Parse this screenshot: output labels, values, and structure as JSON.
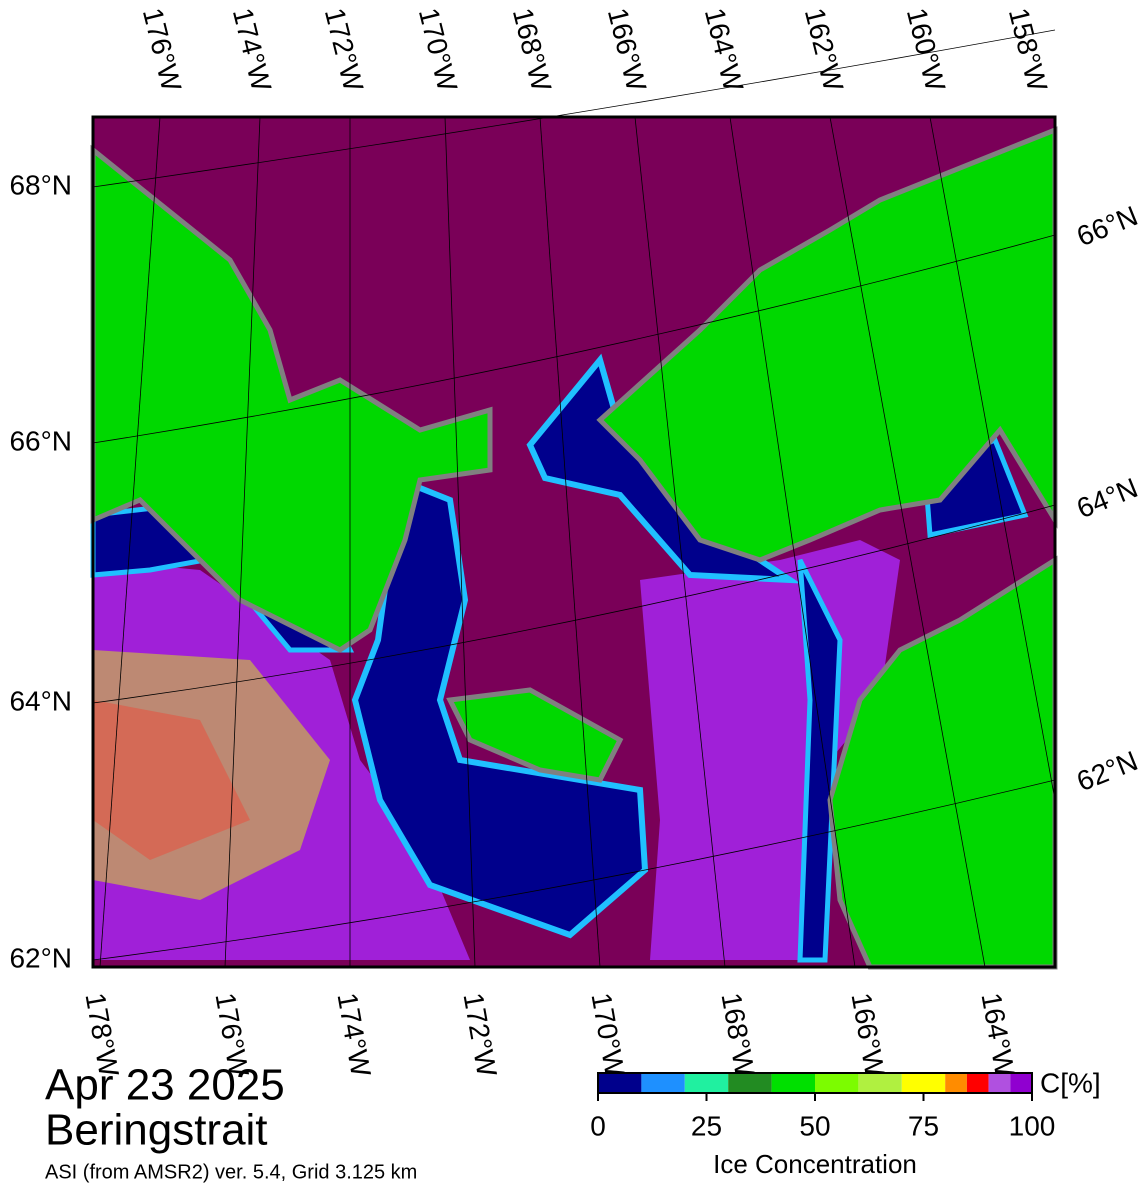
{
  "map": {
    "top_lon_labels": [
      "176°W",
      "174°W",
      "172°W",
      "170°W",
      "168°W",
      "166°W",
      "164°W",
      "162°W",
      "160°W",
      "158°W"
    ],
    "bottom_lon_labels": [
      "178°W",
      "176°W",
      "174°W",
      "172°W",
      "170°W",
      "168°W",
      "166°W",
      "164°W"
    ],
    "left_lat_labels": [
      "68°N",
      "66°N",
      "64°N",
      "62°N"
    ],
    "right_lat_labels": [
      "66°N",
      "64°N",
      "62°N"
    ]
  },
  "caption": {
    "date": "Apr 23 2025",
    "region": "Beringstrait",
    "source": "ASI (from AMSR2) ver. 5.4,  Grid 3.125 km"
  },
  "colorbar": {
    "bins": [
      0,
      10,
      20,
      30,
      40,
      50,
      60,
      70,
      80,
      85,
      90,
      95,
      100
    ],
    "colors": [
      "#00008c",
      "#1e90ff",
      "#20f0a0",
      "#228b22",
      "#00e000",
      "#7cfc00",
      "#b0f040",
      "#ffff00",
      "#ff8c00",
      "#ff0000",
      "#b050e0",
      "#9000d0"
    ],
    "ticks": [
      0,
      25,
      50,
      75,
      100
    ],
    "unit": "C[%]",
    "label": "Ice Concentration"
  }
}
